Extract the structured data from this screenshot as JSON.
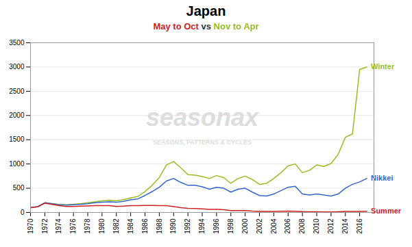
{
  "chart_data": {
    "type": "line",
    "title": "Japan",
    "subtitle": [
      {
        "text": "May to Oct",
        "color": "#cc2222"
      },
      {
        "text": " vs ",
        "color": "#333333"
      },
      {
        "text": "Nov to Apr",
        "color": "#99bb22"
      }
    ],
    "annotations": [
      {
        "text": "seasonax",
        "color": "#dddddd"
      },
      {
        "text": "SEASONS, PATTERNS & CYCLES",
        "color": "#dddddd"
      }
    ],
    "x": [
      1970,
      1971,
      1972,
      1973,
      1974,
      1975,
      1976,
      1977,
      1978,
      1979,
      1980,
      1981,
      1982,
      1983,
      1984,
      1985,
      1986,
      1987,
      1988,
      1989,
      1990,
      1991,
      1992,
      1993,
      1994,
      1995,
      1996,
      1997,
      1998,
      1999,
      2000,
      2001,
      2002,
      2003,
      2004,
      2005,
      2006,
      2007,
      2008,
      2009,
      2010,
      2011,
      2012,
      2013,
      2014,
      2015,
      2016,
      2017
    ],
    "series": [
      {
        "name": "Winter",
        "color": "#99bb22",
        "values": [
          100,
          120,
          200,
          185,
          165,
          160,
          170,
          180,
          200,
          220,
          240,
          250,
          240,
          265,
          300,
          330,
          430,
          560,
          720,
          980,
          1050,
          920,
          780,
          770,
          740,
          700,
          760,
          720,
          600,
          700,
          750,
          680,
          580,
          600,
          700,
          820,
          960,
          1000,
          820,
          870,
          980,
          950,
          1010,
          1200,
          1550,
          1620,
          2950,
          3000
        ]
      },
      {
        "name": "Nikkei",
        "color": "#3366cc",
        "values": [
          100,
          120,
          200,
          180,
          160,
          150,
          160,
          170,
          180,
          200,
          210,
          220,
          210,
          230,
          260,
          280,
          350,
          430,
          520,
          650,
          700,
          620,
          560,
          560,
          530,
          480,
          520,
          500,
          420,
          480,
          500,
          420,
          350,
          340,
          380,
          450,
          520,
          540,
          380,
          360,
          380,
          360,
          340,
          380,
          500,
          580,
          630,
          700
        ]
      },
      {
        "name": "Summer",
        "color": "#cc2222",
        "values": [
          100,
          115,
          190,
          165,
          140,
          125,
          125,
          130,
          135,
          140,
          140,
          140,
          125,
          130,
          140,
          140,
          145,
          145,
          140,
          140,
          120,
          100,
          85,
          80,
          75,
          65,
          65,
          55,
          40,
          38,
          38,
          28,
          22,
          20,
          22,
          25,
          28,
          25,
          18,
          15,
          15,
          12,
          12,
          15,
          20,
          20,
          22,
          25
        ]
      }
    ],
    "xlim": [
      1970,
      2018
    ],
    "xticks": [
      1970,
      1972,
      1974,
      1976,
      1978,
      1980,
      1982,
      1984,
      1986,
      1988,
      1990,
      1992,
      1994,
      1996,
      1998,
      2000,
      2002,
      2004,
      2006,
      2008,
      2010,
      2012,
      2014,
      2016
    ],
    "ylim": [
      0,
      3500
    ],
    "yticks": [
      0,
      500,
      1000,
      1500,
      2000,
      2500,
      3000,
      3500
    ],
    "grid": true
  }
}
